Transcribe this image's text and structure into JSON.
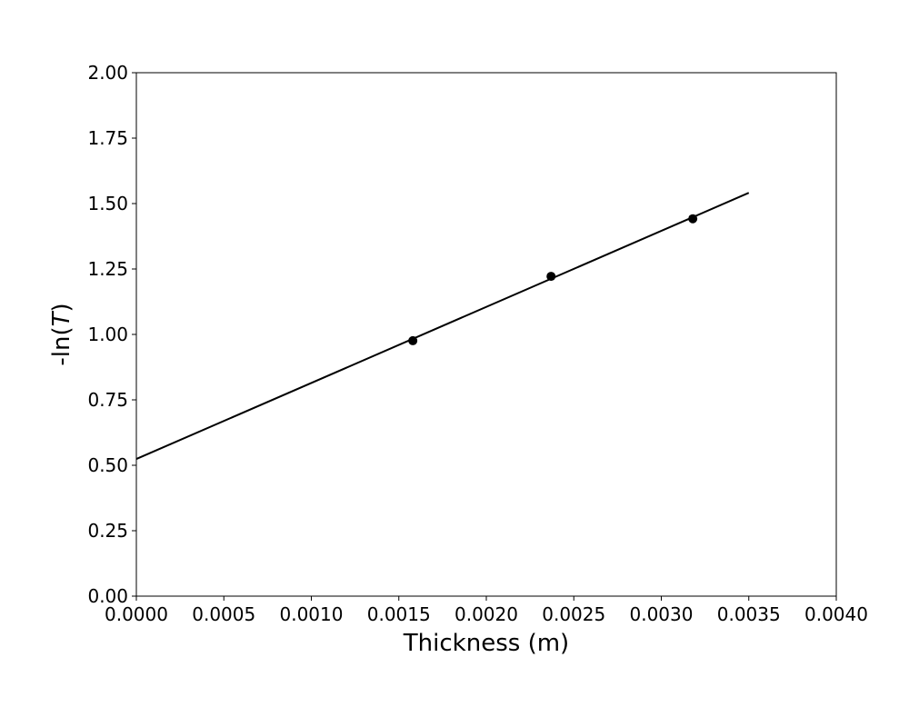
{
  "chart_data": {
    "type": "scatter",
    "title": "",
    "xlabel": "Thickness (m)",
    "ylabel_prefix": "-ln(",
    "ylabel_var": "T",
    "ylabel_suffix": ")",
    "xlim": [
      0,
      0.004
    ],
    "ylim": [
      0,
      2
    ],
    "xticks": [
      "0.0000",
      "0.0005",
      "0.0010",
      "0.0015",
      "0.0020",
      "0.0025",
      "0.0030",
      "0.0035",
      "0.0040"
    ],
    "yticks": [
      "0.00",
      "0.25",
      "0.50",
      "0.75",
      "1.00",
      "1.25",
      "1.50",
      "1.75",
      "2.00"
    ],
    "grid": false,
    "series": [
      {
        "kind": "points",
        "x": [
          0.00158,
          0.00237,
          0.00318
        ],
        "y": [
          0.976,
          1.222,
          1.442
        ],
        "color": "#000000"
      },
      {
        "kind": "fit-line",
        "x": [
          0,
          0.0035
        ],
        "y": [
          0.524,
          1.541
        ],
        "color": "#000000"
      }
    ]
  }
}
